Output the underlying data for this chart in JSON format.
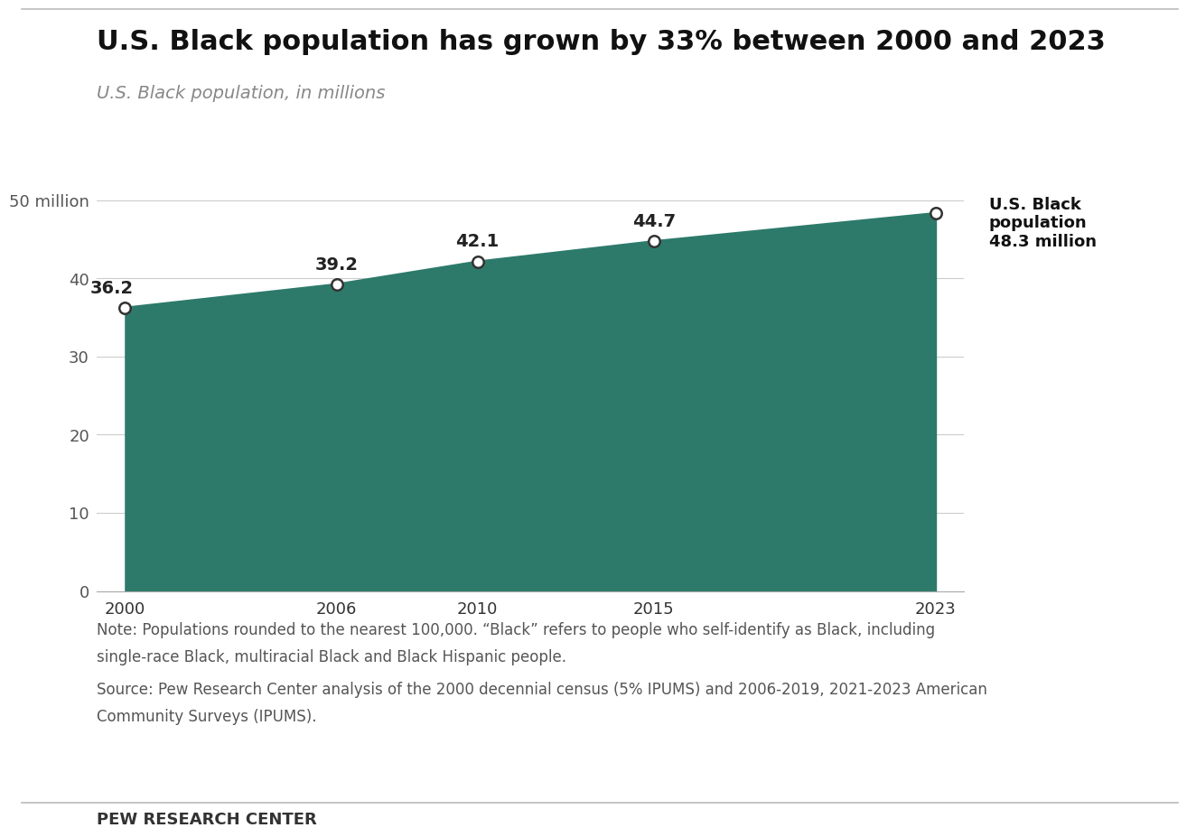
{
  "title": "U.S. Black population has grown by 33% between 2000 and 2023",
  "subtitle": "U.S. Black population, in millions",
  "years": [
    2000,
    2006,
    2010,
    2015,
    2023
  ],
  "values": [
    36.2,
    39.2,
    42.1,
    44.7,
    48.3
  ],
  "area_color": "#2D7A6B",
  "line_color": "#2D7A6B",
  "marker_face_color": "#ffffff",
  "marker_edge_color": "#333333",
  "background_color": "#ffffff",
  "yticks": [
    0,
    10,
    20,
    30,
    40,
    50
  ],
  "ytick_labels": [
    "0",
    "10",
    "20",
    "30",
    "40",
    "50 million"
  ],
  "ylim": [
    0,
    56
  ],
  "annotation_label": "U.S. Black\npopulation\n48.3 million",
  "note_line1": "Note: Populations rounded to the nearest 100,000. “Black” refers to people who self-identify as Black, including",
  "note_line2": "single-race Black, multiracial Black and Black Hispanic people.",
  "source_line1": "Source: Pew Research Center analysis of the 2000 decennial census (5% IPUMS) and 2006-2019, 2021-2023 American",
  "source_line2": "Community Surveys (IPUMS).",
  "footer": "PEW RESEARCH CENTER",
  "title_fontsize": 22,
  "subtitle_fontsize": 14,
  "tick_fontsize": 13,
  "data_label_fontsize": 14,
  "note_fontsize": 12,
  "footer_fontsize": 13
}
